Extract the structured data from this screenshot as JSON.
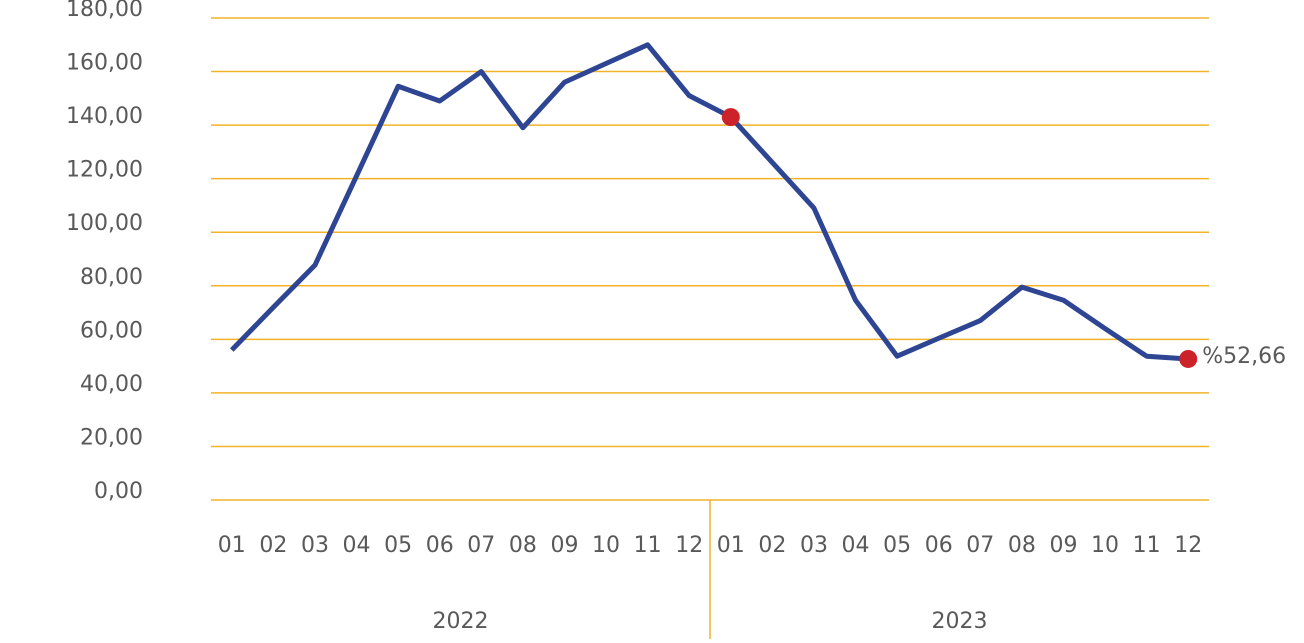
{
  "chart_data": {
    "type": "line",
    "categories": [
      "01",
      "02",
      "03",
      "04",
      "05",
      "06",
      "07",
      "08",
      "09",
      "10",
      "11",
      "12",
      "01",
      "02",
      "03",
      "04",
      "05",
      "06",
      "07",
      "08",
      "09",
      "10",
      "11",
      "12"
    ],
    "groups": [
      {
        "label": "2022",
        "count": 12
      },
      {
        "label": "2023",
        "count": 12
      }
    ],
    "series": [
      {
        "color": "#2e4593",
        "values": [
          56,
          72,
          87.7,
          121,
          154.5,
          149,
          160,
          139,
          156,
          163,
          170,
          151,
          143,
          126,
          109,
          74.6,
          53.7,
          60.4,
          67,
          79.5,
          74.6,
          64,
          53.7,
          52.66
        ],
        "value_labels": [
          null,
          null,
          null,
          null,
          null,
          null,
          null,
          null,
          null,
          null,
          null,
          null,
          null,
          null,
          null,
          null,
          null,
          null,
          null,
          null,
          null,
          null,
          null,
          "%52,66"
        ],
        "marker_indices": [
          12,
          23
        ],
        "marker_color": "#cc2229"
      }
    ],
    "ylim": [
      0,
      180
    ],
    "yticks": [
      {
        "value": 0,
        "label": "0,00"
      },
      {
        "value": 20,
        "label": "20,00"
      },
      {
        "value": 40,
        "label": "40,00"
      },
      {
        "value": 60,
        "label": "60,00"
      },
      {
        "value": 80,
        "label": "80,00"
      },
      {
        "value": 100,
        "label": "100,00"
      },
      {
        "value": 120,
        "label": "120,00"
      },
      {
        "value": 140,
        "label": "140,00"
      },
      {
        "value": 160,
        "label": "160,00"
      },
      {
        "value": 180,
        "label": "180,00"
      }
    ],
    "grid": true,
    "grid_color": "#f2b32a"
  }
}
